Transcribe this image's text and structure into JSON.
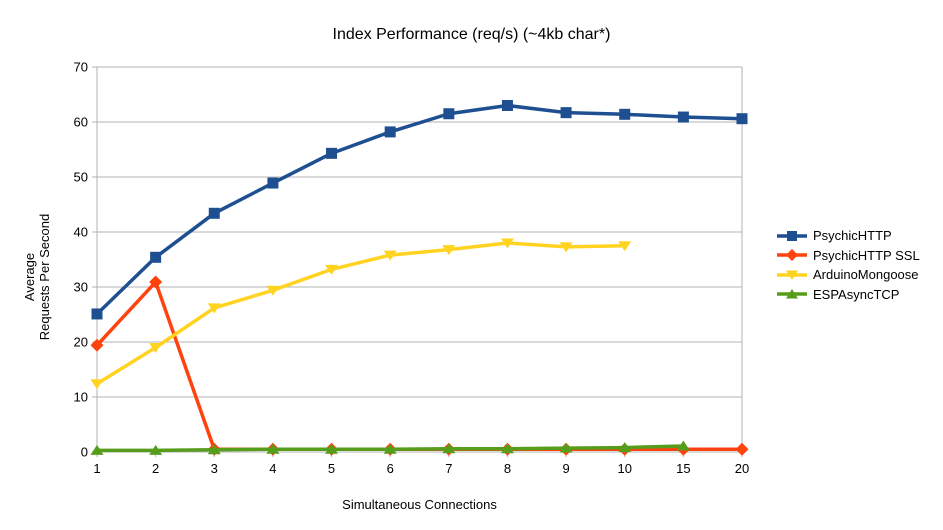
{
  "chart_data": {
    "type": "line",
    "title": "Index Performance (req/s) (~4kb char*)",
    "xlabel": "Simultaneous Connections",
    "ylabel": "Average\nRequests Per Second",
    "categories": [
      1,
      2,
      3,
      4,
      5,
      6,
      7,
      8,
      9,
      10,
      15,
      20
    ],
    "y_ticks": [
      0,
      10,
      20,
      30,
      40,
      50,
      60,
      70
    ],
    "ylim": [
      0,
      70
    ],
    "grid": "horizontal",
    "legend_position": "right",
    "series": [
      {
        "name": "PsychicHTTP",
        "color": "#1D4F91",
        "marker": "square",
        "values": [
          25.1,
          35.4,
          43.4,
          48.9,
          54.3,
          58.2,
          61.5,
          63.0,
          61.7,
          61.4,
          60.9,
          60.6
        ]
      },
      {
        "name": "PsychicHTTP SSL",
        "color": "#FF420E",
        "marker": "diamond",
        "values": [
          19.4,
          30.9,
          0.5,
          0.5,
          0.5,
          0.5,
          0.5,
          0.5,
          0.5,
          0.5,
          0.5,
          0.5
        ]
      },
      {
        "name": "ArduinoMongoose",
        "color": "#FFD320",
        "marker": "triangle-down",
        "values": [
          12.4,
          19.0,
          26.2,
          29.4,
          33.2,
          35.8,
          36.8,
          38.0,
          37.3,
          37.5,
          null,
          null
        ]
      },
      {
        "name": "ESPAsyncTCP",
        "color": "#579D1C",
        "marker": "triangle-up",
        "values": [
          0.3,
          0.3,
          0.4,
          0.5,
          0.5,
          0.5,
          0.6,
          0.6,
          0.7,
          0.8,
          1.1,
          null
        ]
      }
    ],
    "axis_color": "#B3B3B3",
    "text_color": "#000000",
    "background": "#FFFFFF"
  }
}
